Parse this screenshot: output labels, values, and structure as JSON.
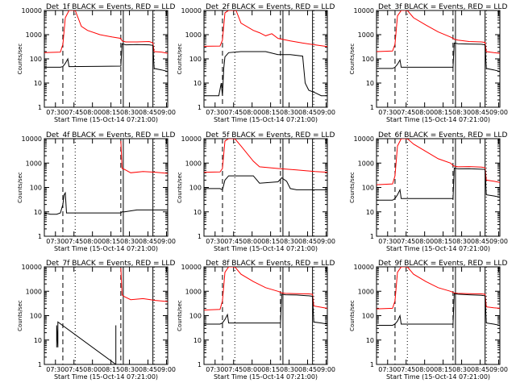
{
  "figure": {
    "x_axis_label": "Start Time (15-Oct-14 07:21:00)",
    "x_tick_labels": [
      "07:30",
      "07:45",
      "08:00",
      "08:15",
      "08:30",
      "08:45",
      "09:00"
    ],
    "y_axis_label": "Counts/sec",
    "y_tick_labels": [
      "1",
      "10",
      "100",
      "1000",
      "10000"
    ],
    "colors": {
      "events": "#000000",
      "lld": "#ff0000"
    }
  },
  "chart_data": [
    {
      "type": "line",
      "title": "Det_1f  BLACK = Events, RED = LLD",
      "xlabel": "Start Time (15-Oct-14 07:21:00)",
      "ylabel": "Counts/sec",
      "x_range_min": [
        0,
        100
      ],
      "y_log_range": [
        1,
        10000
      ],
      "markers": {
        "dashed": [
          15,
          62
        ],
        "dotted": [
          25,
          89
        ],
        "solid": [
          64,
          88
        ]
      },
      "series": [
        {
          "name": "LLD",
          "color": "red",
          "x": [
            0,
            13,
            15,
            17,
            20,
            25,
            30,
            35,
            45,
            55,
            62,
            63,
            66,
            75,
            85,
            88,
            89,
            95,
            100
          ],
          "y": [
            180,
            190,
            400,
            5000,
            10000,
            10000,
            2200,
            1500,
            1000,
            800,
            700,
            550,
            500,
            500,
            520,
            460,
            200,
            190,
            170
          ]
        },
        {
          "name": "Events",
          "color": "black",
          "x": [
            0,
            13,
            15,
            17,
            19,
            20,
            62,
            63,
            66,
            75,
            85,
            88,
            89,
            95,
            100
          ],
          "y": [
            45,
            45,
            48,
            65,
            100,
            48,
            50,
            420,
            380,
            390,
            380,
            360,
            40,
            35,
            30
          ]
        }
      ]
    },
    {
      "type": "line",
      "title": "Det_2f  BLACK = Events, RED = LLD",
      "xlabel": "Start Time (15-Oct-14 07:21:00)",
      "ylabel": "Counts/sec",
      "x_range_min": [
        0,
        100
      ],
      "y_log_range": [
        1,
        10000
      ],
      "markers": {
        "dashed": [
          15,
          62
        ],
        "dotted": [
          25,
          89
        ],
        "solid": [
          64,
          88
        ]
      },
      "series": [
        {
          "name": "LLD",
          "color": "red",
          "x": [
            0,
            13,
            15,
            17,
            20,
            26,
            30,
            40,
            45,
            50,
            55,
            60,
            70,
            80,
            90,
            100
          ],
          "y": [
            330,
            340,
            600,
            8000,
            10000,
            10000,
            3000,
            1500,
            1200,
            900,
            1100,
            700,
            550,
            450,
            380,
            320
          ]
        },
        {
          "name": "Events",
          "color": "black",
          "x": [
            0,
            12,
            14,
            15,
            16,
            17,
            20,
            30,
            40,
            50,
            60,
            70,
            80,
            82,
            85,
            90,
            95,
            100
          ],
          "y": [
            3,
            3,
            10,
            3,
            40,
            120,
            180,
            200,
            200,
            200,
            150,
            150,
            130,
            10,
            5,
            4,
            3,
            3
          ]
        }
      ]
    },
    {
      "type": "line",
      "title": "Det_3f  BLACK = Events, RED = LLD",
      "xlabel": "Start Time (15-Oct-14 07:21:00)",
      "ylabel": "Counts/sec",
      "x_range_min": [
        0,
        100
      ],
      "y_log_range": [
        1,
        10000
      ],
      "markers": {
        "dashed": [
          15,
          62
        ],
        "dotted": [
          25,
          89
        ],
        "solid": [
          64,
          88
        ]
      },
      "series": [
        {
          "name": "LLD",
          "color": "red",
          "x": [
            0,
            13,
            15,
            17,
            20,
            25,
            30,
            40,
            50,
            60,
            62,
            63,
            66,
            75,
            85,
            88,
            89,
            95,
            100
          ],
          "y": [
            200,
            210,
            400,
            6000,
            10000,
            10000,
            5000,
            2500,
            1300,
            800,
            700,
            650,
            600,
            520,
            500,
            480,
            200,
            180,
            170
          ]
        },
        {
          "name": "Events",
          "color": "black",
          "x": [
            0,
            13,
            15,
            17,
            19,
            20,
            62,
            63,
            66,
            75,
            85,
            88,
            89,
            95,
            100
          ],
          "y": [
            40,
            40,
            45,
            60,
            90,
            45,
            45,
            450,
            420,
            410,
            400,
            380,
            40,
            35,
            30
          ]
        }
      ]
    },
    {
      "type": "line",
      "title": "Det_4f  BLACK = Events, RED = LLD",
      "xlabel": "Start Time (15-Oct-14 07:21:00)",
      "ylabel": "Counts/sec",
      "x_range_min": [
        0,
        100
      ],
      "y_log_range": [
        1,
        10000
      ],
      "markers": {
        "dashed": [
          15,
          62
        ],
        "dotted": [
          25,
          89
        ],
        "solid": [
          64,
          88
        ]
      },
      "series": [
        {
          "name": "LLD",
          "color": "red",
          "x": [
            62,
            63,
            65,
            70,
            80,
            90,
            100
          ],
          "y": [
            8000,
            600,
            550,
            400,
            450,
            420,
            380
          ]
        },
        {
          "name": "Events",
          "color": "black",
          "x": [
            0,
            5,
            10,
            13,
            15,
            16,
            17,
            18,
            62,
            63,
            65,
            75,
            85,
            95,
            100
          ],
          "y": [
            9,
            8,
            8,
            9,
            20,
            50,
            60,
            9,
            9,
            10,
            10,
            12,
            12,
            12,
            12
          ]
        }
      ]
    },
    {
      "type": "line",
      "title": "Det_5f  BLACK = Events, RED = LLD",
      "xlabel": "Start Time (15-Oct-14 07:21:00)",
      "ylabel": "Counts/sec",
      "x_range_min": [
        0,
        100
      ],
      "y_log_range": [
        1,
        10000
      ],
      "markers": {
        "dashed": [
          15,
          62
        ],
        "dotted": [
          25,
          89
        ],
        "solid": [
          64,
          88
        ]
      },
      "series": [
        {
          "name": "LLD",
          "color": "red",
          "x": [
            0,
            13,
            15,
            17,
            20,
            25,
            30,
            40,
            45,
            60,
            75,
            90,
            100
          ],
          "y": [
            420,
            430,
            600,
            8000,
            10000,
            10000,
            5000,
            1200,
            700,
            600,
            520,
            450,
            420
          ]
        },
        {
          "name": "Events",
          "color": "black",
          "x": [
            0,
            13,
            15,
            17,
            20,
            40,
            45,
            60,
            63,
            67,
            70,
            75,
            80,
            90,
            100
          ],
          "y": [
            90,
            90,
            80,
            200,
            300,
            300,
            150,
            170,
            250,
            180,
            90,
            80,
            80,
            80,
            80
          ]
        }
      ]
    },
    {
      "type": "line",
      "title": "Det_6f  BLACK = Events, RED = LLD",
      "xlabel": "Start Time (15-Oct-14 07:21:00)",
      "ylabel": "Counts/sec",
      "x_range_min": [
        0,
        100
      ],
      "y_log_range": [
        1,
        10000
      ],
      "markers": {
        "dashed": [
          15,
          62
        ],
        "dotted": [
          25,
          89
        ],
        "solid": [
          64,
          88
        ]
      },
      "series": [
        {
          "name": "LLD",
          "color": "red",
          "x": [
            0,
            13,
            15,
            17,
            20,
            25,
            30,
            40,
            50,
            60,
            62,
            63,
            66,
            75,
            85,
            88,
            89,
            95,
            100
          ],
          "y": [
            130,
            140,
            300,
            5000,
            10000,
            10000,
            6000,
            3000,
            1500,
            1000,
            800,
            750,
            700,
            720,
            680,
            650,
            200,
            180,
            160
          ]
        },
        {
          "name": "Events",
          "color": "black",
          "x": [
            0,
            13,
            15,
            17,
            19,
            20,
            62,
            63,
            66,
            75,
            85,
            88,
            89,
            95,
            100
          ],
          "y": [
            30,
            30,
            35,
            50,
            80,
            35,
            35,
            620,
            580,
            590,
            560,
            550,
            50,
            45,
            40
          ]
        }
      ]
    },
    {
      "type": "line",
      "title": "Det_7f  BLACK = Events, RED = LLD",
      "xlabel": "Start Time (15-Oct-14 07:21:00)",
      "ylabel": "Counts/sec",
      "x_range_min": [
        0,
        100
      ],
      "y_log_range": [
        1,
        10000
      ],
      "markers": {
        "dashed": [
          15,
          62
        ],
        "dotted": [
          25,
          89
        ],
        "solid": [
          64,
          88
        ]
      },
      "series": [
        {
          "name": "LLD",
          "color": "red",
          "x": [
            62,
            63,
            65,
            70,
            80,
            90,
            100
          ],
          "y": [
            9000,
            700,
            600,
            450,
            500,
            420,
            380
          ]
        },
        {
          "name": "Events",
          "color": "black",
          "x": [
            10,
            10,
            11,
            11,
            58,
            58
          ],
          "y": [
            5,
            40,
            5,
            55,
            1,
            40
          ]
        }
      ]
    },
    {
      "type": "line",
      "title": "Det_8f  BLACK = Events, RED = LLD",
      "xlabel": "Start Time (15-Oct-14 07:21:00)",
      "ylabel": "Counts/sec",
      "x_range_min": [
        0,
        100
      ],
      "y_log_range": [
        1,
        10000
      ],
      "markers": {
        "dashed": [
          15,
          62
        ],
        "dotted": [
          25,
          89
        ],
        "solid": [
          64,
          88
        ]
      },
      "series": [
        {
          "name": "LLD",
          "color": "red",
          "x": [
            0,
            13,
            15,
            17,
            20,
            25,
            30,
            40,
            50,
            60,
            62,
            63,
            66,
            75,
            85,
            88,
            89,
            95,
            100
          ],
          "y": [
            170,
            180,
            400,
            6000,
            10000,
            10000,
            5000,
            2500,
            1400,
            1000,
            900,
            850,
            820,
            800,
            780,
            750,
            250,
            220,
            200
          ]
        },
        {
          "name": "Events",
          "color": "black",
          "x": [
            0,
            13,
            15,
            17,
            19,
            20,
            62,
            63,
            66,
            75,
            85,
            88,
            89,
            95,
            100
          ],
          "y": [
            45,
            45,
            50,
            70,
            110,
            50,
            50,
            760,
            720,
            700,
            650,
            620,
            55,
            50,
            45
          ]
        }
      ]
    },
    {
      "type": "line",
      "title": "Det_9f  BLACK = Events, RED = LLD",
      "xlabel": "Start Time (15-Oct-14 07:21:00)",
      "ylabel": "Counts/sec",
      "x_range_min": [
        0,
        100
      ],
      "y_log_range": [
        1,
        10000
      ],
      "markers": {
        "dashed": [
          15,
          62
        ],
        "dotted": [
          25,
          89
        ],
        "solid": [
          64,
          88
        ]
      },
      "series": [
        {
          "name": "LLD",
          "color": "red",
          "x": [
            0,
            13,
            15,
            17,
            20,
            25,
            30,
            40,
            50,
            60,
            62,
            63,
            66,
            75,
            85,
            88,
            89,
            95,
            100
          ],
          "y": [
            190,
            200,
            400,
            6000,
            10000,
            10000,
            5000,
            2500,
            1400,
            1000,
            900,
            850,
            820,
            800,
            780,
            750,
            230,
            210,
            200
          ]
        },
        {
          "name": "Events",
          "color": "black",
          "x": [
            0,
            13,
            15,
            17,
            19,
            20,
            62,
            63,
            66,
            75,
            85,
            88,
            89,
            95,
            100
          ],
          "y": [
            40,
            40,
            45,
            60,
            100,
            45,
            45,
            800,
            760,
            720,
            680,
            650,
            50,
            45,
            40
          ]
        }
      ]
    }
  ]
}
